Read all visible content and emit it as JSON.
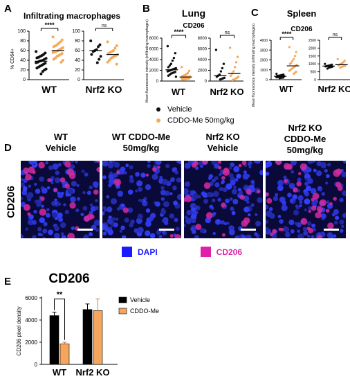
{
  "colors": {
    "vehicle": "#111111",
    "cddo": "#f5a95b",
    "bar_vehicle": "#000000",
    "bar_cddo": "#f5a55e",
    "dapi": "#1a1aff",
    "cd206": "#e020a8"
  },
  "panel_letters": {
    "a": "A",
    "b": "B",
    "c": "C",
    "d": "D",
    "e": "E"
  },
  "legend": {
    "vehicle": "Vehicle",
    "cddo": "CDDO-Me 50mg/kg"
  },
  "chart_data": [
    {
      "id": "A",
      "type": "scatter",
      "title": "Infiltrating macrophages",
      "ylabel": "% CD64+",
      "groups": [
        {
          "label": "WT",
          "ylim": [
            0,
            100
          ],
          "ticks": [
            0,
            20,
            40,
            60,
            80,
            100
          ],
          "significance": "****",
          "series": [
            {
              "name": "Vehicle",
              "values": [
                58,
                55,
                52,
                50,
                48,
                46,
                45,
                44,
                42,
                40,
                39,
                38,
                36,
                35,
                34,
                32,
                30,
                28,
                26,
                24,
                22,
                20,
                17,
                12
              ]
            },
            {
              "name": "CDDO-Me 50mg/kg",
              "values": [
                88,
                82,
                78,
                75,
                72,
                70,
                68,
                66,
                64,
                62,
                60,
                58,
                57,
                56,
                54,
                52,
                50,
                48,
                45,
                42,
                40,
                36
              ]
            }
          ]
        },
        {
          "label": "Nrf2 KO",
          "ylim": [
            0,
            100
          ],
          "ticks": [
            0,
            20,
            40,
            60,
            80,
            100
          ],
          "significance": "ns",
          "series": [
            {
              "name": "Vehicle",
              "values": [
                80,
                72,
                68,
                62,
                60,
                58,
                52,
                48,
                42,
                35
              ]
            },
            {
              "name": "CDDO-Me 50mg/kg",
              "values": [
                78,
                70,
                65,
                60,
                58,
                56,
                54,
                52,
                50,
                48,
                46,
                44,
                40,
                36,
                32
              ]
            }
          ]
        }
      ]
    },
    {
      "id": "B",
      "type": "scatter",
      "title": "Lung",
      "subtitle": "CD206",
      "ylabel": "Mean fluorescence intensity (infiltrating macrophages)",
      "groups": [
        {
          "label": "WT",
          "ylim": [
            0,
            8000
          ],
          "ticks": [
            0,
            2000,
            4000,
            6000,
            8000
          ],
          "significance": "****",
          "series": [
            {
              "name": "Vehicle",
              "values": [
                6500,
                5200,
                4300,
                3800,
                3200,
                2900,
                2600,
                2400,
                2300,
                2200,
                2100,
                2000,
                1900,
                1800,
                1700,
                1600,
                1500,
                1400,
                1200,
                1000,
                800
              ]
            },
            {
              "name": "CDDO-Me 50mg/kg",
              "values": [
                2600,
                1900,
                1500,
                1300,
                1100,
                1000,
                900,
                850,
                800,
                750,
                700,
                650,
                600,
                550,
                500,
                450,
                400,
                350,
                300,
                250
              ]
            }
          ]
        },
        {
          "label": "Nrf2 KO",
          "ylim": [
            0,
            8000
          ],
          "ticks": [
            0,
            2000,
            4000,
            6000,
            8000
          ],
          "significance": "ns",
          "series": [
            {
              "name": "Vehicle",
              "values": [
                5800,
                3200,
                2400,
                1800,
                1200,
                1000,
                800,
                600,
                500,
                400,
                300
              ]
            },
            {
              "name": "CDDO-Me 50mg/kg",
              "values": [
                6200,
                4500,
                3500,
                2600,
                1800,
                1400,
                1000,
                800,
                600,
                450,
                300,
                200
              ]
            }
          ]
        }
      ]
    },
    {
      "id": "C",
      "type": "scatter",
      "title": "Spleen",
      "subtitle": "CD206",
      "ylabel": "Mean fluorescence intensity (infiltrating macrophages)",
      "groups": [
        {
          "label": "WT",
          "ylim": [
            0,
            4000
          ],
          "ticks": [
            0,
            1000,
            2000,
            3000,
            4000
          ],
          "significance": "****",
          "series": [
            {
              "name": "Vehicle",
              "values": [
                600,
                520,
                480,
                450,
                420,
                400,
                380,
                360,
                340,
                320,
                300,
                280,
                260,
                240,
                220,
                200,
                180,
                160
              ]
            },
            {
              "name": "CDDO-Me 50mg/kg",
              "values": [
                3300,
                2800,
                2400,
                2100,
                1900,
                1700,
                1600,
                1500,
                1400,
                1300,
                1200,
                1100,
                1000,
                900,
                800,
                700,
                600
              ]
            }
          ]
        },
        {
          "label": "Nrf2 KO",
          "ylim": [
            0,
            2500
          ],
          "ticks": [
            0,
            500,
            1000,
            1500,
            2000,
            2500
          ],
          "significance": "ns",
          "series": [
            {
              "name": "Vehicle",
              "values": [
                1000,
                950,
                920,
                900,
                880,
                860,
                840,
                820,
                800,
                780,
                760,
                700
              ]
            },
            {
              "name": "CDDO-Me 50mg/kg",
              "values": [
                1300,
                1200,
                1100,
                1050,
                1000,
                950,
                900,
                880,
                860,
                840,
                800,
                760
              ]
            }
          ]
        }
      ]
    },
    {
      "id": "E",
      "type": "bar",
      "title": "CD206",
      "ylabel": "CD206 pixel density",
      "categories": [
        "WT",
        "Nrf2 KO"
      ],
      "ylim": [
        0,
        6000
      ],
      "ticks": [
        0,
        2000,
        4000,
        6000
      ],
      "series": [
        {
          "name": "Vehicle",
          "values": [
            4400,
            4950
          ],
          "errors": [
            300,
            500
          ]
        },
        {
          "name": "CDDO-Me",
          "values": [
            1850,
            4850
          ],
          "errors": [
            150,
            1050
          ]
        }
      ],
      "significance": [
        {
          "between": "WT",
          "label": "**"
        }
      ]
    }
  ],
  "microscopy": {
    "row_label": "CD206",
    "columns": [
      {
        "line1": "WT",
        "line2": "Vehicle",
        "line3": ""
      },
      {
        "line1": "WT CDDO-Me",
        "line2": "50mg/kg",
        "line3": ""
      },
      {
        "line1": "Nrf2 KO",
        "line2": "Vehicle",
        "line3": ""
      },
      {
        "line1": "Nrf2 KO",
        "line2": "CDDO-Me",
        "line3": "50mg/kg"
      }
    ],
    "legend": {
      "dapi": "DAPI",
      "cd206": "CD206"
    }
  }
}
